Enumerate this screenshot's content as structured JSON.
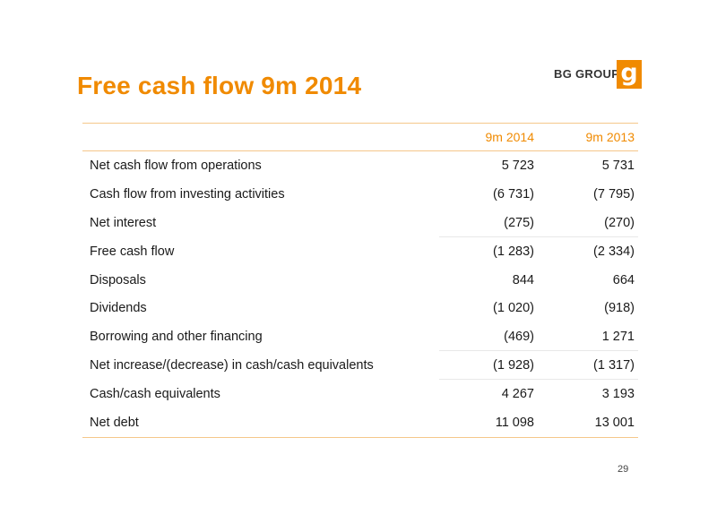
{
  "slide": {
    "title": "Free cash flow 9m 2014",
    "logo_text": "BG GROUP",
    "logo_mark": "g",
    "page_number": "29"
  },
  "table": {
    "headers": [
      "",
      "9m 2014",
      "9m 2013"
    ],
    "rows": [
      {
        "label": "Net cash flow from operations",
        "a": "5 723",
        "b": "5 731"
      },
      {
        "label": "Cash flow from investing activities",
        "a": "(6 731)",
        "b": "(7 795)"
      },
      {
        "label": "Net interest",
        "a": "(275)",
        "b": "(270)"
      },
      {
        "label": "Free cash flow",
        "a": "(1 283)",
        "b": "(2 334)"
      },
      {
        "label": "Disposals",
        "a": "844",
        "b": "664"
      },
      {
        "label": "Dividends",
        "a": "(1 020)",
        "b": "(918)"
      },
      {
        "label": "Borrowing and other financing",
        "a": "(469)",
        "b": "1 271"
      },
      {
        "label": "Net increase/(decrease) in cash/cash equivalents",
        "a": "(1 928)",
        "b": "(1 317)"
      },
      {
        "label": "Cash/cash equivalents",
        "a": "4 267",
        "b": "3 193"
      },
      {
        "label": "Net debt",
        "a": "11 098",
        "b": "13 001"
      }
    ]
  },
  "colors": {
    "accent": "#f08a00",
    "rule": "#f5c78a"
  }
}
